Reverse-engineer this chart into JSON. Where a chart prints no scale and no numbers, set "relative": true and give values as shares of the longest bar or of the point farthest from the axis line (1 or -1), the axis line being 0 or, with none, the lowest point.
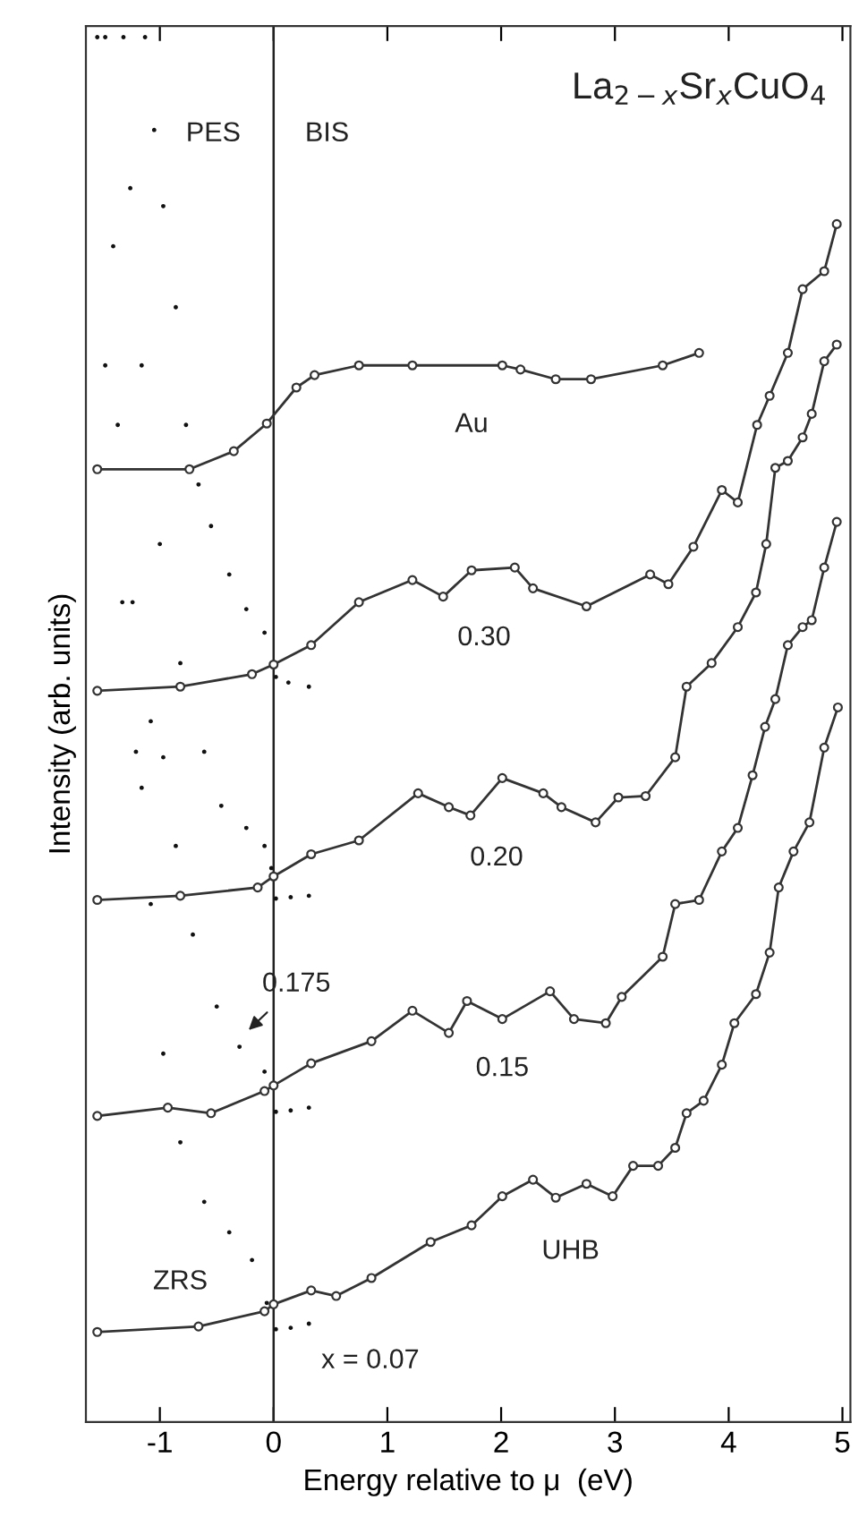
{
  "chart_data": {
    "type": "line",
    "relative": true,
    "title": "La$_{2−x}$Sr$_{x}$CuO$_{4}$",
    "xlabel": "Energy relative to μ  (eV)",
    "ylabel": "Intensity (arb. units)",
    "xlim": [
      -1.65,
      5.07
    ],
    "xticks": [
      -1,
      0,
      1,
      2,
      3,
      4,
      5
    ],
    "grid": false,
    "legend": false,
    "ref_lines": [
      {
        "axis": "x",
        "value": 0,
        "color": "#222222",
        "line_style": "solid"
      }
    ],
    "annotations": [
      "PES",
      "BIS",
      "Au",
      "0.30",
      "0.20",
      "0.175",
      "0.15",
      "UHB",
      "ZRS",
      "x = 0.07"
    ],
    "series": [
      {
        "marker": "circle",
        "color": "#333333",
        "x": [
          -1.55,
          -0.74,
          -0.35,
          -0.06,
          0.2,
          0.36,
          0.75,
          1.22,
          2.01,
          2.17,
          2.48,
          2.79,
          3.42,
          3.74
        ],
        "values": [
          0.688,
          0.688,
          0.701,
          0.721,
          0.747,
          0.756,
          0.763,
          0.763,
          0.763,
          0.76,
          0.753,
          0.753,
          0.763,
          0.772
        ]
      },
      {
        "marker": "circle",
        "color": "#333333",
        "x": [
          -1.55,
          -0.82,
          -0.19,
          0.0,
          0.33,
          0.75,
          1.22,
          1.49,
          1.74,
          2.12,
          2.28,
          2.75,
          3.31,
          3.47,
          3.69,
          3.94,
          4.08,
          4.25,
          4.36,
          4.52,
          4.65,
          4.84,
          4.95
        ],
        "values": [
          0.528,
          0.531,
          0.54,
          0.547,
          0.561,
          0.592,
          0.608,
          0.596,
          0.615,
          0.617,
          0.602,
          0.589,
          0.612,
          0.605,
          0.632,
          0.673,
          0.664,
          0.72,
          0.741,
          0.772,
          0.818,
          0.831,
          0.865
        ]
      },
      {
        "marker": "circle",
        "color": "#333333",
        "x": [
          -1.55,
          -0.82,
          -0.14,
          0.0,
          0.33,
          0.75,
          1.27,
          1.54,
          1.73,
          2.01,
          2.37,
          2.53,
          2.83,
          3.03,
          3.27,
          3.53,
          3.63,
          3.85,
          4.08,
          4.24,
          4.33,
          4.41,
          4.52,
          4.65,
          4.73,
          4.84,
          4.95
        ],
        "values": [
          0.377,
          0.38,
          0.386,
          0.394,
          0.41,
          0.42,
          0.454,
          0.444,
          0.438,
          0.465,
          0.454,
          0.444,
          0.433,
          0.451,
          0.452,
          0.48,
          0.531,
          0.548,
          0.574,
          0.599,
          0.634,
          0.689,
          0.694,
          0.711,
          0.728,
          0.766,
          0.778
        ]
      },
      {
        "marker": "circle",
        "color": "#333333",
        "x": [
          -1.55,
          -0.93,
          -0.55,
          -0.08,
          0.0,
          0.33,
          0.86,
          1.22,
          1.54,
          1.7,
          2.01,
          2.43,
          2.64,
          2.92,
          3.06,
          3.42,
          3.53,
          3.74,
          3.94,
          4.08,
          4.21,
          4.32,
          4.41,
          4.52,
          4.65,
          4.73,
          4.84,
          4.95
        ],
        "values": [
          0.221,
          0.227,
          0.223,
          0.239,
          0.243,
          0.259,
          0.275,
          0.297,
          0.281,
          0.304,
          0.291,
          0.311,
          0.291,
          0.288,
          0.307,
          0.336,
          0.374,
          0.377,
          0.412,
          0.429,
          0.467,
          0.502,
          0.522,
          0.561,
          0.574,
          0.579,
          0.617,
          0.65
        ]
      },
      {
        "marker": "circle",
        "color": "#333333",
        "x": [
          -1.55,
          -0.66,
          -0.08,
          0.0,
          0.33,
          0.55,
          0.86,
          1.38,
          1.74,
          2.01,
          2.28,
          2.48,
          2.75,
          2.98,
          3.16,
          3.38,
          3.53,
          3.63,
          3.78,
          3.94,
          4.05,
          4.24,
          4.36,
          4.44,
          4.57,
          4.71,
          4.84,
          4.96
        ],
        "values": [
          0.065,
          0.069,
          0.08,
          0.085,
          0.095,
          0.091,
          0.104,
          0.13,
          0.142,
          0.163,
          0.175,
          0.162,
          0.172,
          0.163,
          0.185,
          0.185,
          0.198,
          0.223,
          0.232,
          0.258,
          0.288,
          0.309,
          0.339,
          0.386,
          0.412,
          0.433,
          0.487,
          0.516
        ]
      },
      {
        "type": "scatter",
        "marker": "circle",
        "color": "#111111",
        "x": [
          -1.13,
          -1.05,
          -0.97,
          -0.86,
          -0.77,
          -0.66,
          -0.55,
          -0.39,
          -0.24,
          -0.08,
          0.02,
          0.13,
          0.31
        ],
        "values": [
          1,
          0.933,
          0.878,
          0.805,
          0.72,
          0.677,
          0.647,
          0.612,
          0.587,
          0.57,
          0.538,
          0.534,
          0.531
        ]
      },
      {
        "type": "scatter",
        "marker": "circle",
        "color": "#111111",
        "x": [
          -1.32,
          -1.26,
          -1.16,
          -1.0,
          -0.82,
          -0.61,
          -0.46,
          -0.24,
          -0.08,
          -0.02,
          0.02,
          0.15,
          0.31
        ],
        "values": [
          1,
          0.891,
          0.763,
          0.634,
          0.548,
          0.484,
          0.445,
          0.429,
          0.416,
          0.4,
          0.378,
          0.379,
          0.38
        ]
      },
      {
        "type": "scatter",
        "marker": "circle",
        "color": "#111111",
        "x": [
          -1.48,
          -1.41,
          -1.37,
          -1.24,
          -1.08,
          -0.97,
          -0.86,
          -0.71,
          -0.5,
          -0.3,
          -0.08,
          0.02,
          0.15,
          0.31
        ],
        "values": [
          1,
          0.849,
          0.72,
          0.592,
          0.506,
          0.48,
          0.416,
          0.352,
          0.3,
          0.271,
          0.253,
          0.224,
          0.225,
          0.227
        ]
      },
      {
        "type": "scatter",
        "marker": "circle",
        "color": "#111111",
        "x": [
          -1.55,
          -1.48,
          -1.33,
          -1.21,
          -1.16,
          -1.08,
          -0.97,
          -0.82,
          -0.61,
          -0.39,
          -0.19,
          -0.06,
          0.02,
          0.15,
          0.31
        ],
        "values": [
          1,
          0.763,
          0.592,
          0.484,
          0.458,
          0.374,
          0.266,
          0.202,
          0.159,
          0.137,
          0.117,
          0.086,
          0.067,
          0.068,
          0.071
        ]
      }
    ]
  }
}
